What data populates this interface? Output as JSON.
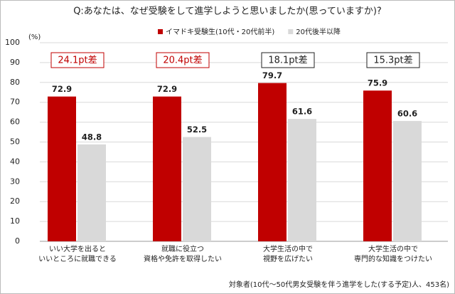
{
  "chart_data": {
    "type": "bar",
    "title": "Q:あなたは、なぜ受験をして進学しようと思いましたか(思っていますか)?",
    "y_unit": "(%)",
    "categories": [
      [
        "いい大学を出ると",
        "いいところに就職できる"
      ],
      [
        "就職に役立つ",
        "資格や免許を取得したい"
      ],
      [
        "大学生活の中で",
        "視野を広げたい"
      ],
      [
        "大学生活の中で",
        "専門的な知識をつけたい"
      ]
    ],
    "series": [
      {
        "name": "イマドキ受験生(10代・20代前半)",
        "color": "#c00000",
        "values": [
          72.9,
          72.9,
          79.7,
          75.9
        ]
      },
      {
        "name": "20代後半以降",
        "color": "#d9d9d9",
        "values": [
          48.8,
          52.5,
          61.6,
          60.6
        ]
      }
    ],
    "annotations": [
      {
        "text": "24.1pt差",
        "color": "#c00000"
      },
      {
        "text": "20.4pt差",
        "color": "#c00000"
      },
      {
        "text": "18.1pt差",
        "color": "#222222"
      },
      {
        "text": "15.3pt差",
        "color": "#222222"
      }
    ],
    "ylim": [
      0,
      100
    ],
    "yticks": [
      0,
      10,
      20,
      30,
      40,
      50,
      60,
      70,
      80,
      90,
      100
    ],
    "grid": true,
    "footnote": "対象者(10代～50代男女受験を伴う進学をした(する予定)人、453名)"
  }
}
